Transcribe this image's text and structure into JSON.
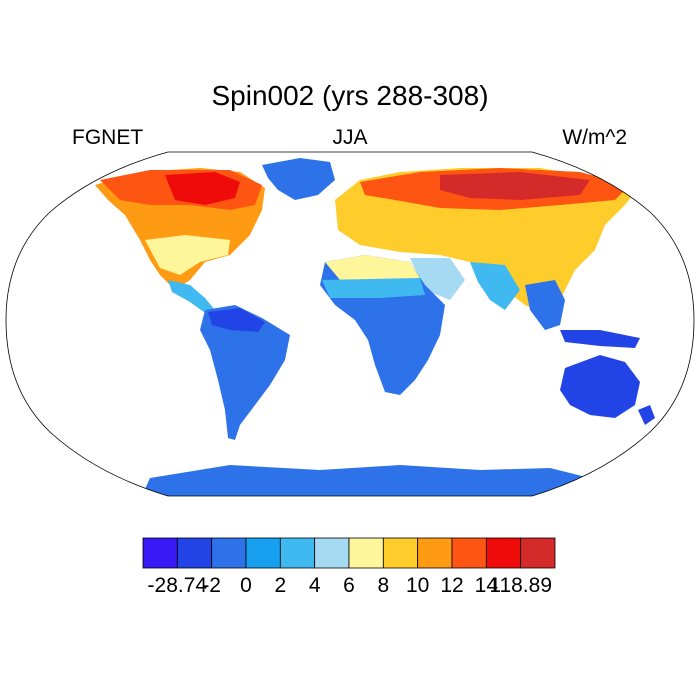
{
  "title": "Spin002 (yrs 288-308)",
  "left_label": "FGNET",
  "center_label": "JJA",
  "right_label": "W/m^2",
  "colorbar": {
    "colors": [
      "#3a17f5",
      "#2244e6",
      "#2e72ea",
      "#17a0f0",
      "#40b9f0",
      "#a6d9f2",
      "#fff59a",
      "#ffcd2b",
      "#ff9a13",
      "#ff5512",
      "#f00b0b",
      "#d42a2a"
    ],
    "tick_labels": [
      "-28.74",
      "-2",
      "0",
      "2",
      "4",
      "6",
      "8",
      "10",
      "12",
      "14",
      "118.89"
    ]
  }
}
